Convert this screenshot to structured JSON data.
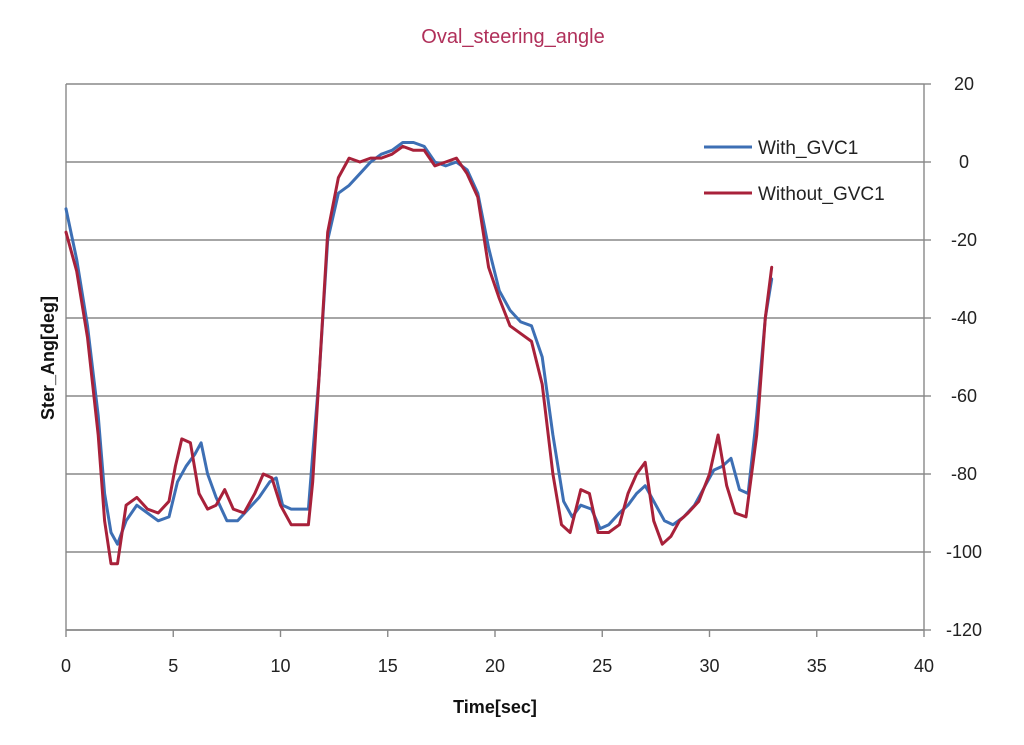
{
  "chart_data": {
    "type": "line",
    "title": "Oval_steering_angle",
    "xlabel": "Time[sec]",
    "ylabel": "Ster_Ang[deg]",
    "xlim": [
      0,
      40
    ],
    "ylim": [
      -120,
      20
    ],
    "x_ticks": [
      "0",
      "5",
      "10",
      "15",
      "20",
      "25",
      "30",
      "35",
      "40"
    ],
    "y_ticks": [
      "20",
      "0",
      "-20",
      "-40",
      "-60",
      "-80",
      "-100",
      "-120"
    ],
    "y_axis_side": "right",
    "grid": "horizontal",
    "legend_position": "top-right",
    "colors": {
      "title": "#b0305a",
      "with": "#3d6fb4",
      "without": "#a8213a",
      "grid": "#888888",
      "axis": "#888888"
    },
    "series": [
      {
        "name": "With_GVC1",
        "color": "#3d6fb4",
        "points": [
          [
            0,
            -12
          ],
          [
            0.5,
            -25
          ],
          [
            1,
            -42
          ],
          [
            1.5,
            -65
          ],
          [
            1.8,
            -85
          ],
          [
            2.1,
            -95
          ],
          [
            2.4,
            -98
          ],
          [
            2.8,
            -92
          ],
          [
            3.3,
            -88
          ],
          [
            3.8,
            -90
          ],
          [
            4.3,
            -92
          ],
          [
            4.8,
            -91
          ],
          [
            5.2,
            -82
          ],
          [
            5.6,
            -78
          ],
          [
            6,
            -75
          ],
          [
            6.3,
            -72
          ],
          [
            6.6,
            -80
          ],
          [
            7,
            -86
          ],
          [
            7.5,
            -92
          ],
          [
            8,
            -92
          ],
          [
            8.5,
            -89
          ],
          [
            9,
            -86
          ],
          [
            9.5,
            -82
          ],
          [
            9.8,
            -81
          ],
          [
            10.1,
            -88
          ],
          [
            10.5,
            -89
          ],
          [
            11,
            -89
          ],
          [
            11.3,
            -89
          ],
          [
            11.5,
            -75
          ],
          [
            11.8,
            -55
          ],
          [
            12.2,
            -20
          ],
          [
            12.7,
            -8
          ],
          [
            13.2,
            -6
          ],
          [
            13.7,
            -3
          ],
          [
            14.2,
            0
          ],
          [
            14.7,
            2
          ],
          [
            15.2,
            3
          ],
          [
            15.7,
            5
          ],
          [
            16.2,
            5
          ],
          [
            16.7,
            4
          ],
          [
            17.2,
            0
          ],
          [
            17.7,
            -1
          ],
          [
            18.2,
            0
          ],
          [
            18.7,
            -2
          ],
          [
            19.2,
            -8
          ],
          [
            19.7,
            -22
          ],
          [
            20.2,
            -33
          ],
          [
            20.7,
            -38
          ],
          [
            21.2,
            -41
          ],
          [
            21.7,
            -42
          ],
          [
            22.2,
            -50
          ],
          [
            22.7,
            -70
          ],
          [
            23.2,
            -87
          ],
          [
            23.6,
            -91
          ],
          [
            24,
            -88
          ],
          [
            24.5,
            -89
          ],
          [
            24.9,
            -94
          ],
          [
            25.3,
            -93
          ],
          [
            25.8,
            -90
          ],
          [
            26.2,
            -88
          ],
          [
            26.6,
            -85
          ],
          [
            27,
            -83
          ],
          [
            27.5,
            -88
          ],
          [
            27.9,
            -92
          ],
          [
            28.3,
            -93
          ],
          [
            28.8,
            -91
          ],
          [
            29.3,
            -88
          ],
          [
            29.8,
            -83
          ],
          [
            30.2,
            -79
          ],
          [
            30.6,
            -78
          ],
          [
            31,
            -76
          ],
          [
            31.4,
            -84
          ],
          [
            31.8,
            -85
          ],
          [
            32.2,
            -65
          ],
          [
            32.6,
            -40
          ],
          [
            32.9,
            -30
          ]
        ]
      },
      {
        "name": "Without_GVC1",
        "color": "#a8213a",
        "points": [
          [
            0,
            -18
          ],
          [
            0.5,
            -28
          ],
          [
            1,
            -45
          ],
          [
            1.5,
            -70
          ],
          [
            1.8,
            -92
          ],
          [
            2.1,
            -103
          ],
          [
            2.4,
            -103
          ],
          [
            2.8,
            -88
          ],
          [
            3.3,
            -86
          ],
          [
            3.8,
            -89
          ],
          [
            4.3,
            -90
          ],
          [
            4.8,
            -87
          ],
          [
            5.1,
            -78
          ],
          [
            5.4,
            -71
          ],
          [
            5.8,
            -72
          ],
          [
            6.2,
            -85
          ],
          [
            6.6,
            -89
          ],
          [
            7,
            -88
          ],
          [
            7.4,
            -84
          ],
          [
            7.8,
            -89
          ],
          [
            8.3,
            -90
          ],
          [
            8.8,
            -85
          ],
          [
            9.2,
            -80
          ],
          [
            9.6,
            -81
          ],
          [
            10,
            -88
          ],
          [
            10.5,
            -93
          ],
          [
            11,
            -93
          ],
          [
            11.3,
            -93
          ],
          [
            11.5,
            -82
          ],
          [
            11.8,
            -55
          ],
          [
            12.2,
            -18
          ],
          [
            12.7,
            -4
          ],
          [
            13.2,
            1
          ],
          [
            13.7,
            0
          ],
          [
            14.2,
            1
          ],
          [
            14.7,
            1
          ],
          [
            15.2,
            2
          ],
          [
            15.7,
            4
          ],
          [
            16.2,
            3
          ],
          [
            16.7,
            3
          ],
          [
            17.2,
            -1
          ],
          [
            17.7,
            0
          ],
          [
            18.2,
            1
          ],
          [
            18.7,
            -3
          ],
          [
            19.2,
            -9
          ],
          [
            19.7,
            -27
          ],
          [
            20.2,
            -35
          ],
          [
            20.7,
            -42
          ],
          [
            21.2,
            -44
          ],
          [
            21.7,
            -46
          ],
          [
            22.2,
            -57
          ],
          [
            22.7,
            -80
          ],
          [
            23.1,
            -93
          ],
          [
            23.5,
            -95
          ],
          [
            24,
            -84
          ],
          [
            24.4,
            -85
          ],
          [
            24.8,
            -95
          ],
          [
            25.3,
            -95
          ],
          [
            25.8,
            -93
          ],
          [
            26.2,
            -85
          ],
          [
            26.6,
            -80
          ],
          [
            27,
            -77
          ],
          [
            27.4,
            -92
          ],
          [
            27.8,
            -98
          ],
          [
            28.2,
            -96
          ],
          [
            28.6,
            -92
          ],
          [
            29,
            -90
          ],
          [
            29.5,
            -87
          ],
          [
            30,
            -80
          ],
          [
            30.4,
            -70
          ],
          [
            30.8,
            -83
          ],
          [
            31.2,
            -90
          ],
          [
            31.7,
            -91
          ],
          [
            32.2,
            -70
          ],
          [
            32.6,
            -40
          ],
          [
            32.9,
            -27
          ]
        ]
      }
    ]
  }
}
